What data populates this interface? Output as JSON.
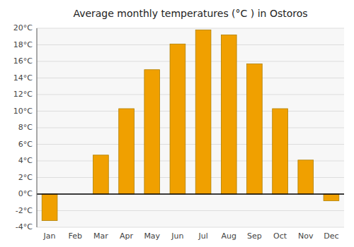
{
  "chart_data": {
    "type": "bar",
    "title": "Average monthly temperatures (°C ) in Ostoros",
    "categories": [
      "Jan",
      "Feb",
      "Mar",
      "Apr",
      "May",
      "Jun",
      "Jul",
      "Aug",
      "Sep",
      "Oct",
      "Nov",
      "Dec"
    ],
    "values": [
      -3.2,
      0,
      4.7,
      10.3,
      15.0,
      18.1,
      19.8,
      19.2,
      15.7,
      10.3,
      4.1,
      -0.8
    ],
    "color": "#F0A000",
    "ylim": [
      -4,
      20
    ],
    "yticks": [
      {
        "value": -4,
        "label": "-4°C"
      },
      {
        "value": -2,
        "label": "-2°C"
      },
      {
        "value": 0,
        "label": "0°C"
      },
      {
        "value": 2,
        "label": "2°C"
      },
      {
        "value": 4,
        "label": "4°C"
      },
      {
        "value": 6,
        "label": "6°C"
      },
      {
        "value": 8,
        "label": "8°C"
      },
      {
        "value": 10,
        "label": "10°C"
      },
      {
        "value": 12,
        "label": "12°C"
      },
      {
        "value": 14,
        "label": "14°C"
      },
      {
        "value": 16,
        "label": "16°C"
      },
      {
        "value": 18,
        "label": "18°C"
      },
      {
        "value": 20,
        "label": "20°C"
      }
    ],
    "grid": true
  }
}
